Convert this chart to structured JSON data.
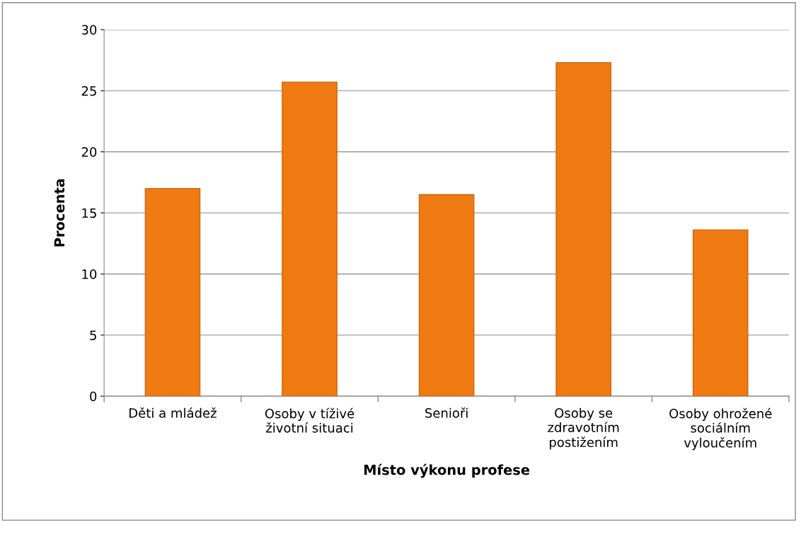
{
  "chart_data": {
    "type": "bar",
    "xlabel": "Místo výkonu profese",
    "ylabel": "Procenta",
    "categories": [
      "Děti a mládež",
      "Osoby v tíživé\nživotní situaci",
      "Senioři",
      "Osoby se\nzdravotním\npostižením",
      "Osoby ohrožené\nsociálním\nvyloučením"
    ],
    "values": [
      17.0,
      25.7,
      16.5,
      27.3,
      13.6
    ],
    "color": "#f07a12",
    "ylim": [
      0,
      30
    ],
    "yticks": [
      0,
      5,
      10,
      15,
      20,
      25,
      30
    ],
    "grid": "y"
  }
}
